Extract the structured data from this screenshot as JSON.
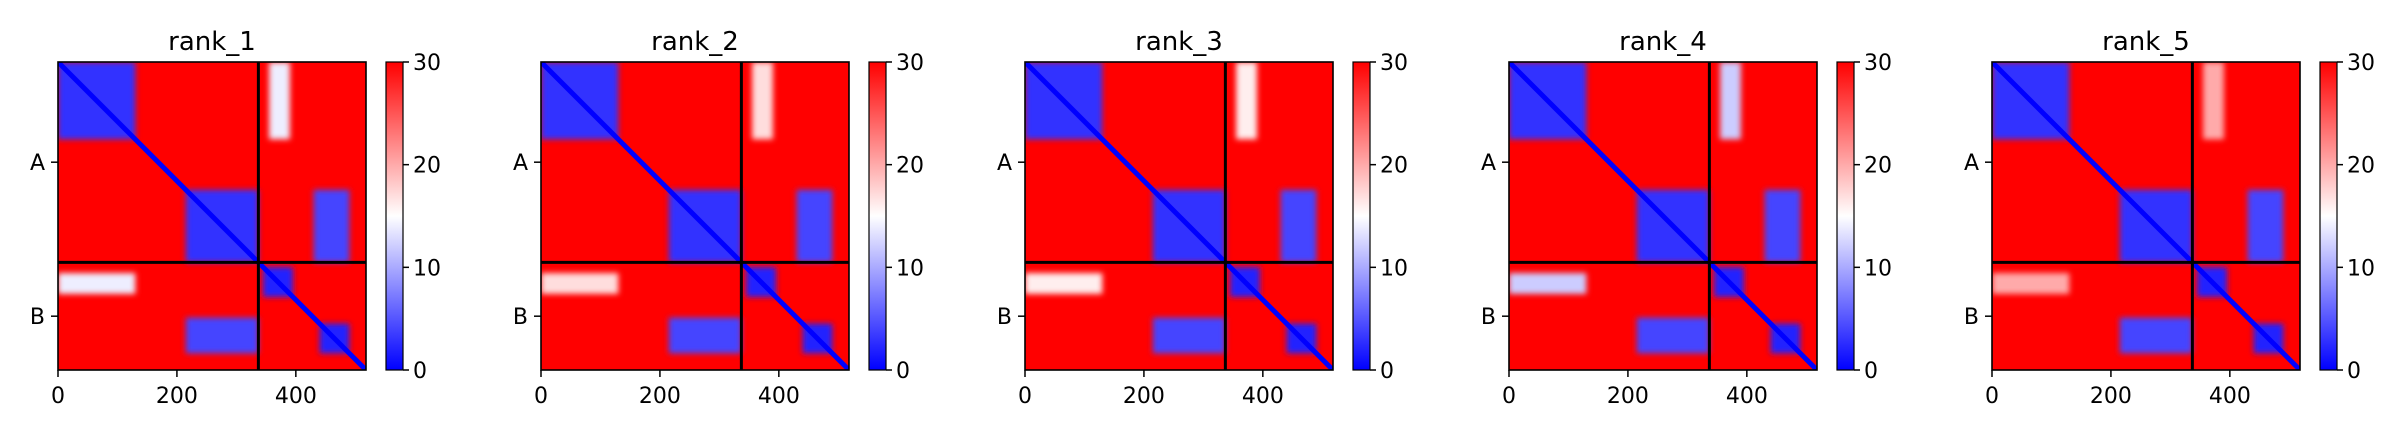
{
  "chart_data": {
    "type": "heatmap",
    "colormap": [
      "#0000ff",
      "#ffffff",
      "#ff0000"
    ],
    "vmin": 0,
    "vmax": 30,
    "colorbar_ticks": [
      0,
      10,
      20,
      30
    ],
    "colorbar_tick_labels": [
      "0",
      "10",
      "20",
      "30"
    ],
    "x_ticks": [
      0,
      200,
      400
    ],
    "x_tick_labels": [
      "0",
      "200",
      "400"
    ],
    "xlim": [
      0,
      518
    ],
    "chain_boundary": 337,
    "chains": [
      {
        "label": "A",
        "start": 0,
        "end": 337
      },
      {
        "label": "B",
        "start": 337,
        "end": 518
      }
    ],
    "panels": [
      {
        "title": "rank_1",
        "low_blocks": [
          {
            "x": [
              0,
              130
            ],
            "y": [
              0,
              130
            ],
            "value": 3
          },
          {
            "x": [
              215,
              337
            ],
            "y": [
              215,
              337
            ],
            "value": 3
          },
          {
            "x": [
              430,
              490
            ],
            "y": [
              215,
              337
            ],
            "value": 4
          },
          {
            "x": [
              215,
              337
            ],
            "y": [
              430,
              490
            ],
            "value": 4
          },
          {
            "x": [
              345,
              395
            ],
            "y": [
              345,
              395
            ],
            "value": 2
          },
          {
            "x": [
              440,
              490
            ],
            "y": [
              440,
              490
            ],
            "value": 2
          },
          {
            "x": [
              355,
              390
            ],
            "y": [
              0,
              130
            ],
            "value": 14
          },
          {
            "x": [
              0,
              130
            ],
            "y": [
              355,
              390
            ],
            "value": 14
          }
        ]
      },
      {
        "title": "rank_2",
        "low_blocks": [
          {
            "x": [
              0,
              130
            ],
            "y": [
              0,
              130
            ],
            "value": 3
          },
          {
            "x": [
              215,
              337
            ],
            "y": [
              215,
              337
            ],
            "value": 3
          },
          {
            "x": [
              430,
              490
            ],
            "y": [
              215,
              337
            ],
            "value": 4
          },
          {
            "x": [
              215,
              337
            ],
            "y": [
              430,
              490
            ],
            "value": 4
          },
          {
            "x": [
              345,
              395
            ],
            "y": [
              345,
              395
            ],
            "value": 2
          },
          {
            "x": [
              440,
              490
            ],
            "y": [
              440,
              490
            ],
            "value": 2
          },
          {
            "x": [
              355,
              390
            ],
            "y": [
              0,
              130
            ],
            "value": 17
          },
          {
            "x": [
              0,
              130
            ],
            "y": [
              355,
              390
            ],
            "value": 17
          }
        ]
      },
      {
        "title": "rank_3",
        "low_blocks": [
          {
            "x": [
              0,
              130
            ],
            "y": [
              0,
              130
            ],
            "value": 3
          },
          {
            "x": [
              215,
              337
            ],
            "y": [
              215,
              337
            ],
            "value": 3
          },
          {
            "x": [
              430,
              490
            ],
            "y": [
              215,
              337
            ],
            "value": 4
          },
          {
            "x": [
              215,
              337
            ],
            "y": [
              430,
              490
            ],
            "value": 4
          },
          {
            "x": [
              345,
              395
            ],
            "y": [
              345,
              395
            ],
            "value": 2
          },
          {
            "x": [
              440,
              490
            ],
            "y": [
              440,
              490
            ],
            "value": 2
          },
          {
            "x": [
              355,
              390
            ],
            "y": [
              0,
              130
            ],
            "value": 16
          },
          {
            "x": [
              0,
              130
            ],
            "y": [
              355,
              390
            ],
            "value": 16
          }
        ]
      },
      {
        "title": "rank_4",
        "low_blocks": [
          {
            "x": [
              0,
              130
            ],
            "y": [
              0,
              130
            ],
            "value": 3
          },
          {
            "x": [
              215,
              337
            ],
            "y": [
              215,
              337
            ],
            "value": 3
          },
          {
            "x": [
              430,
              490
            ],
            "y": [
              215,
              337
            ],
            "value": 4
          },
          {
            "x": [
              215,
              337
            ],
            "y": [
              430,
              490
            ],
            "value": 4
          },
          {
            "x": [
              345,
              395
            ],
            "y": [
              345,
              395
            ],
            "value": 2
          },
          {
            "x": [
              440,
              490
            ],
            "y": [
              440,
              490
            ],
            "value": 2
          },
          {
            "x": [
              355,
              390
            ],
            "y": [
              0,
              130
            ],
            "value": 12
          },
          {
            "x": [
              0,
              130
            ],
            "y": [
              355,
              390
            ],
            "value": 12
          }
        ]
      },
      {
        "title": "rank_5",
        "low_blocks": [
          {
            "x": [
              0,
              130
            ],
            "y": [
              0,
              130
            ],
            "value": 3
          },
          {
            "x": [
              215,
              337
            ],
            "y": [
              215,
              337
            ],
            "value": 3
          },
          {
            "x": [
              430,
              490
            ],
            "y": [
              215,
              337
            ],
            "value": 4
          },
          {
            "x": [
              215,
              337
            ],
            "y": [
              430,
              490
            ],
            "value": 4
          },
          {
            "x": [
              345,
              395
            ],
            "y": [
              345,
              395
            ],
            "value": 2
          },
          {
            "x": [
              440,
              490
            ],
            "y": [
              440,
              490
            ],
            "value": 2
          },
          {
            "x": [
              355,
              390
            ],
            "y": [
              0,
              130
            ],
            "value": 20
          },
          {
            "x": [
              0,
              130
            ],
            "y": [
              355,
              390
            ],
            "value": 20
          }
        ]
      }
    ]
  }
}
